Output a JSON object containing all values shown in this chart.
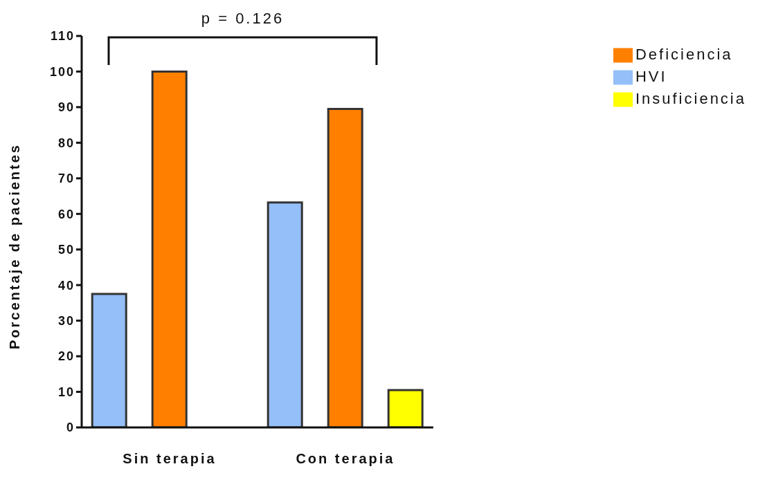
{
  "chart_data": {
    "type": "bar",
    "ylabel": "Porcentaje de pacientes",
    "categories": [
      "Sin terapia",
      "Con terapia"
    ],
    "series": [
      {
        "name": "HVI",
        "color": "#94bff8",
        "values": [
          37.5,
          63.2
        ]
      },
      {
        "name": "Deficiencia",
        "color": "#ff8000",
        "values": [
          100,
          89.5
        ]
      },
      {
        "name": "Insuficiencia",
        "color": "#ffff00",
        "values": [
          null,
          10.5
        ]
      }
    ],
    "ylim": [
      0,
      110
    ],
    "yticks": [
      0,
      10,
      20,
      30,
      40,
      50,
      60,
      70,
      80,
      90,
      100,
      110
    ],
    "grid": false,
    "legend": "top right",
    "annotations": [
      "p = 0.126"
    ]
  }
}
